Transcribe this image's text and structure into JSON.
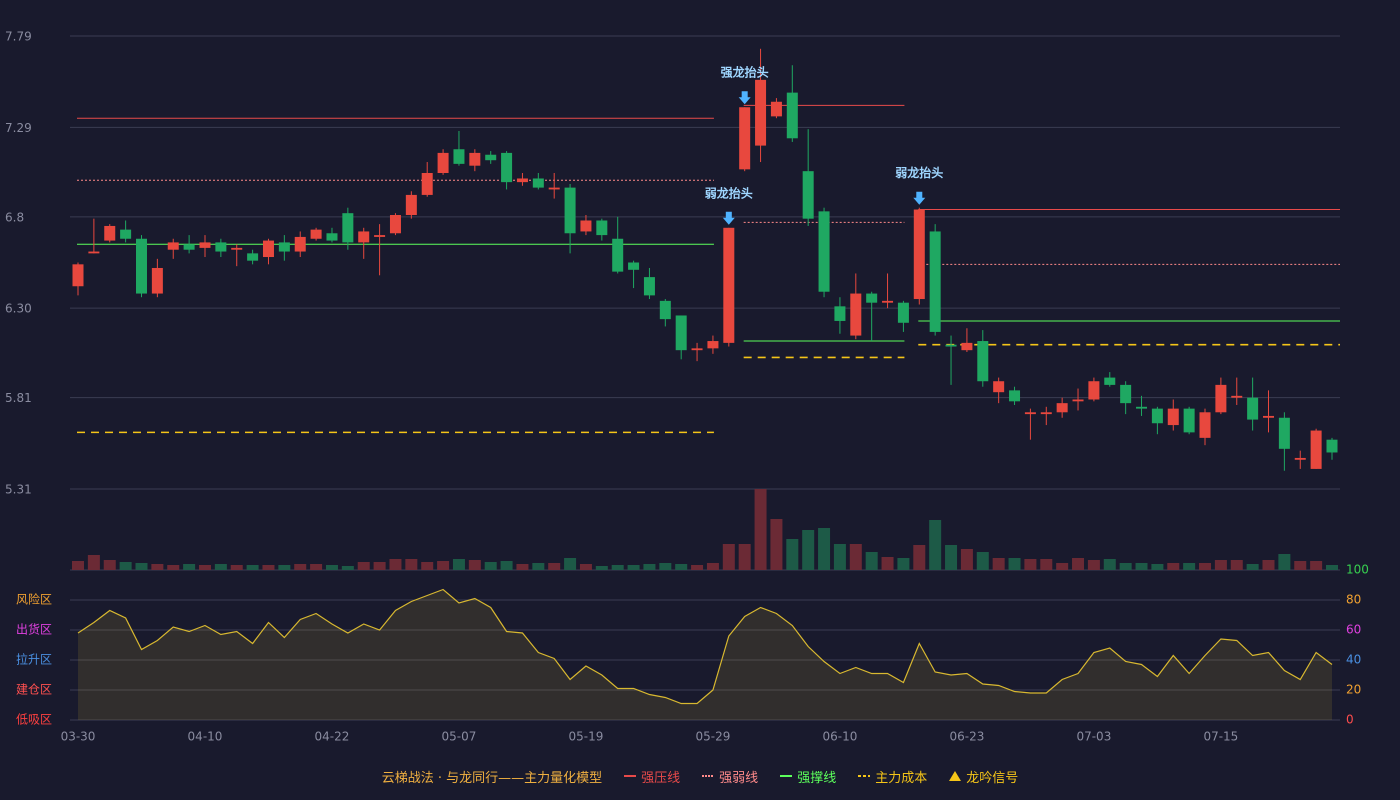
{
  "chart_data": {
    "type": "candlestick",
    "categories": [
      "03-30",
      null,
      null,
      null,
      null,
      null,
      null,
      null,
      "04-10",
      null,
      null,
      null,
      null,
      null,
      null,
      null,
      "04-22",
      null,
      null,
      null,
      null,
      null,
      null,
      null,
      "05-07",
      null,
      null,
      null,
      null,
      null,
      null,
      null,
      "05-19",
      null,
      null,
      null,
      null,
      null,
      null,
      null,
      "05-29",
      null,
      null,
      null,
      null,
      null,
      null,
      null,
      "06-10",
      null,
      null,
      null,
      null,
      null,
      null,
      null,
      "06-23",
      null,
      null,
      null,
      null,
      null,
      null,
      null,
      "07-03",
      null,
      null,
      null,
      null,
      null,
      null,
      null,
      "07-15",
      null,
      null,
      null,
      null,
      null,
      null,
      null
    ],
    "open": [
      6.42,
      6.6,
      6.67,
      6.73,
      6.68,
      6.38,
      6.62,
      6.65,
      6.63,
      6.66,
      6.62,
      6.6,
      6.58,
      6.66,
      6.61,
      6.68,
      6.71,
      6.82,
      6.66,
      6.69,
      6.71,
      6.81,
      6.92,
      7.04,
      7.17,
      7.08,
      7.14,
      7.15,
      6.99,
      7.01,
      6.95,
      6.96,
      6.72,
      6.78,
      6.68,
      6.55,
      6.47,
      6.34,
      6.26,
      6.07,
      6.08,
      6.11,
      7.06,
      7.19,
      7.35,
      7.48,
      7.05,
      6.83,
      6.31,
      6.15,
      6.38,
      6.33,
      6.33,
      6.35,
      6.72,
      6.1,
      6.07,
      6.12,
      5.84,
      5.85,
      5.72,
      5.72,
      5.73,
      5.79,
      5.8,
      5.92,
      5.88,
      5.76,
      5.75,
      5.66,
      5.75,
      5.59,
      5.73,
      5.81,
      5.81,
      5.7,
      5.7,
      5.47,
      5.42,
      5.58
    ],
    "high": [
      6.55,
      6.79,
      6.76,
      6.78,
      6.7,
      6.57,
      6.68,
      6.7,
      6.7,
      6.68,
      6.65,
      6.62,
      6.68,
      6.7,
      6.72,
      6.74,
      6.74,
      6.85,
      6.74,
      6.76,
      6.82,
      6.94,
      7.1,
      7.17,
      7.27,
      7.17,
      7.16,
      7.16,
      7.04,
      7.04,
      7.04,
      6.98,
      6.81,
      6.79,
      6.8,
      6.56,
      6.52,
      6.35,
      6.26,
      6.11,
      6.15,
      6.74,
      7.4,
      7.72,
      7.45,
      7.63,
      7.28,
      6.85,
      6.36,
      6.49,
      6.39,
      6.49,
      6.34,
      6.85,
      6.76,
      6.15,
      6.19,
      6.18,
      5.92,
      5.87,
      5.75,
      5.76,
      5.81,
      5.86,
      5.92,
      5.95,
      5.9,
      5.82,
      5.76,
      5.8,
      5.76,
      5.75,
      5.92,
      5.92,
      5.92,
      5.85,
      5.73,
      5.52,
      5.64,
      5.59
    ],
    "low": [
      6.37,
      6.6,
      6.66,
      6.66,
      6.36,
      6.36,
      6.57,
      6.6,
      6.58,
      6.58,
      6.53,
      6.54,
      6.54,
      6.56,
      6.58,
      6.67,
      6.66,
      6.62,
      6.57,
      6.48,
      6.7,
      6.79,
      6.91,
      7.03,
      7.08,
      7.05,
      7.09,
      6.95,
      6.97,
      6.95,
      6.9,
      6.6,
      6.7,
      6.67,
      6.49,
      6.41,
      6.35,
      6.2,
      6.02,
      6.01,
      6.05,
      6.09,
      7.05,
      7.1,
      7.34,
      7.21,
      6.75,
      6.36,
      6.16,
      6.13,
      6.12,
      6.3,
      6.17,
      6.32,
      6.15,
      5.88,
      6.06,
      5.87,
      5.78,
      5.77,
      5.58,
      5.66,
      5.7,
      5.74,
      5.79,
      5.87,
      5.72,
      5.71,
      5.61,
      5.63,
      5.61,
      5.55,
      5.72,
      5.77,
      5.63,
      5.62,
      5.41,
      5.42,
      5.42,
      5.47
    ],
    "close": [
      6.54,
      6.61,
      6.75,
      6.68,
      6.38,
      6.52,
      6.66,
      6.62,
      6.66,
      6.61,
      6.63,
      6.56,
      6.67,
      6.61,
      6.69,
      6.73,
      6.67,
      6.66,
      6.72,
      6.7,
      6.81,
      6.92,
      7.04,
      7.15,
      7.09,
      7.15,
      7.11,
      6.99,
      7.01,
      6.96,
      6.96,
      6.71,
      6.78,
      6.7,
      6.5,
      6.51,
      6.37,
      6.24,
      6.07,
      6.08,
      6.12,
      6.74,
      7.4,
      7.55,
      7.43,
      7.23,
      6.79,
      6.39,
      6.23,
      6.38,
      6.33,
      6.34,
      6.22,
      6.84,
      6.17,
      6.09,
      6.11,
      5.9,
      5.9,
      5.79,
      5.73,
      5.73,
      5.78,
      5.8,
      5.9,
      5.88,
      5.78,
      5.75,
      5.67,
      5.75,
      5.62,
      5.73,
      5.88,
      5.82,
      5.69,
      5.71,
      5.53,
      5.48,
      5.63,
      5.51
    ],
    "up_color": "#e8483e",
    "down_color": "#1fa862",
    "ylim": [
      5.31,
      7.79
    ],
    "yticks": [
      7.79,
      7.29,
      6.8,
      {
        "value": 6.3,
        "label": "6.30"
      },
      5.81,
      5.31
    ],
    "grid": true,
    "volume": {
      "values": [
        9,
        15,
        10,
        8,
        7,
        6,
        5,
        6,
        5,
        6,
        5,
        5,
        5,
        5,
        6,
        6,
        5,
        4,
        8,
        8,
        11,
        11,
        8,
        9,
        11,
        10,
        8,
        9,
        6,
        7,
        7,
        12,
        6,
        4,
        5,
        5,
        6,
        7,
        6,
        5,
        7,
        26,
        26,
        81,
        51,
        31,
        40,
        42,
        26,
        26,
        18,
        13,
        12,
        25,
        50,
        25,
        21,
        18,
        12,
        12,
        11,
        11,
        7,
        12,
        10,
        11,
        7,
        7,
        6,
        7,
        7,
        7,
        10,
        10,
        6,
        10,
        16,
        9,
        9,
        5
      ],
      "ylim": [
        0,
        81
      ],
      "up_color": "#6b2a35",
      "down_color": "#1d5a47"
    },
    "oscillator": {
      "values": [
        58,
        65,
        73,
        68,
        47,
        53,
        62,
        59,
        63,
        57,
        59,
        51,
        65,
        55,
        67,
        71,
        64,
        58,
        64,
        60,
        73,
        79,
        83,
        87,
        78,
        81,
        75,
        59,
        58,
        45,
        41,
        27,
        36,
        30,
        21,
        21,
        17,
        15,
        11,
        11,
        20,
        56,
        69,
        75,
        71,
        63,
        49,
        39,
        31,
        35,
        31,
        31,
        25,
        51,
        32,
        30,
        31,
        24,
        23,
        19,
        18,
        18,
        27,
        31,
        45,
        48,
        39,
        37,
        29,
        43,
        31,
        43,
        54,
        53,
        43,
        45,
        33,
        27,
        45,
        37
      ],
      "color": "#d8b830",
      "ylim": [
        0,
        100
      ],
      "yticks": [
        0,
        20,
        40,
        60,
        80,
        100
      ],
      "ytick_colors": [
        "#ff4d4d",
        "#f0a030",
        "#4a90e2",
        "#e040e0",
        "#f0a030",
        "#36d04f"
      ],
      "zones": [
        {
          "label": "风险区",
          "value": 80,
          "color": "#f0a030"
        },
        {
          "label": "出货区",
          "value": 60,
          "color": "#e040e0"
        },
        {
          "label": "拉升区",
          "value": 40,
          "color": "#4a90e2"
        },
        {
          "label": "建仓区",
          "value": 20,
          "color": "#ff5050"
        },
        {
          "label": "低吸区",
          "value": 0,
          "color": "#ff4040"
        }
      ]
    },
    "lines": [
      {
        "name": "强压线",
        "color": "#e84a4a",
        "style": "solid"
      },
      {
        "name": "强弱线",
        "color": "#ff8a8a",
        "style": "dotted"
      },
      {
        "name": "强撑线",
        "color": "#5cff5c",
        "style": "solid"
      },
      {
        "name": "主力成本",
        "color": "#f5c518",
        "style": "dashed"
      }
    ],
    "levels": [
      {
        "from": 0,
        "to": 40,
        "values": [
          7.34,
          7.0,
          6.65,
          5.62
        ]
      },
      {
        "from": 42,
        "to": 52,
        "values": [
          7.41,
          6.77,
          6.12,
          6.03
        ]
      },
      {
        "from": 53,
        "to": 79,
        "values": [
          6.84,
          6.54,
          6.23,
          6.1
        ]
      }
    ],
    "annotations": [
      {
        "text": "弱龙抬头",
        "index": 41
      },
      {
        "text": "强龙抬头",
        "index": 42
      },
      {
        "text": "弱龙抬头",
        "index": 53
      }
    ],
    "signal": {
      "name": "龙吟信号",
      "color": "#f5c518"
    },
    "legend_title": "云梯战法 · 与龙同行——主力量化模型",
    "legend_title_color": "#f0b040"
  }
}
